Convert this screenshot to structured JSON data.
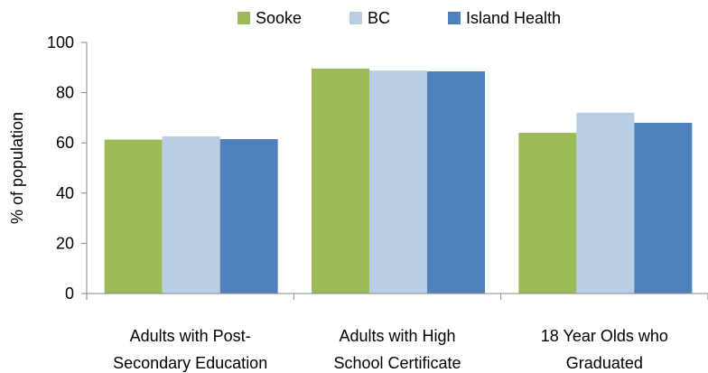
{
  "chart_data": {
    "type": "bar",
    "categories": [
      [
        "Adults with Post-",
        "Secondary Education"
      ],
      [
        "Adults with High",
        "School Certificate"
      ],
      [
        "18 Year Olds who",
        "Graduated"
      ]
    ],
    "series": [
      {
        "name": "Sooke",
        "values": [
          61.3,
          89.6,
          64.0
        ],
        "color": "#9bbb59"
      },
      {
        "name": "BC",
        "values": [
          62.6,
          88.8,
          72.0
        ],
        "color": "#b9cde5"
      },
      {
        "name": "Island Health",
        "values": [
          61.5,
          88.5,
          68.0
        ],
        "color": "#4f81bd"
      }
    ],
    "title": "",
    "xlabel": "",
    "ylabel": "% of population",
    "ylim": [
      0,
      100
    ],
    "yticks": [
      0,
      20,
      40,
      60,
      80,
      100
    ],
    "legend_position": "top",
    "grid": false
  }
}
